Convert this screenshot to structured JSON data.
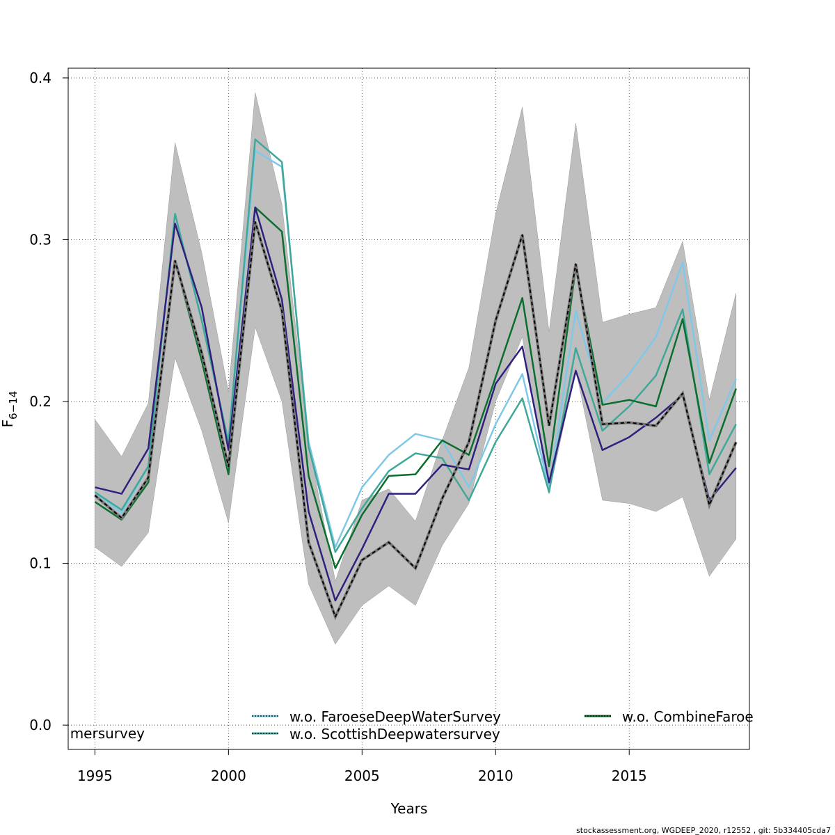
{
  "chart_data": {
    "type": "line",
    "title": "",
    "xlabel": "Years",
    "ylabel": "F",
    "ylabel_subscript": "6−14",
    "xlim": [
      1994,
      2019.5
    ],
    "ylim": [
      -0.015,
      0.406
    ],
    "grid": true,
    "x_ticks": [
      "1995",
      "2000",
      "2005",
      "2010",
      "2015"
    ],
    "y_ticks": [
      "0.0",
      "0.1",
      "0.2",
      "0.3",
      "0.4"
    ],
    "x": [
      1995,
      1996,
      1997,
      1998,
      1999,
      2000,
      2001,
      2002,
      2003,
      2004,
      2005,
      2006,
      2007,
      2008,
      2009,
      2010,
      2011,
      2012,
      2013,
      2014,
      2015,
      2016,
      2017,
      2018,
      2019
    ],
    "band": {
      "color": "#bebebe",
      "lower": [
        0.11,
        0.098,
        0.119,
        0.227,
        0.182,
        0.125,
        0.246,
        0.2,
        0.087,
        0.05,
        0.074,
        0.086,
        0.074,
        0.111,
        0.137,
        0.2,
        0.24,
        0.143,
        0.22,
        0.139,
        0.137,
        0.132,
        0.141,
        0.092,
        0.115
      ],
      "upper": [
        0.189,
        0.166,
        0.199,
        0.36,
        0.292,
        0.206,
        0.391,
        0.322,
        0.174,
        0.089,
        0.139,
        0.146,
        0.126,
        0.176,
        0.221,
        0.316,
        0.382,
        0.243,
        0.372,
        0.249,
        0.254,
        0.258,
        0.299,
        0.201,
        0.267
      ]
    },
    "series": [
      {
        "color": "#80c8e8",
        "dash": "",
        "values": [
          0.144,
          0.131,
          0.16,
          0.316,
          0.25,
          0.175,
          0.355,
          0.345,
          0.175,
          0.11,
          0.147,
          0.167,
          0.18,
          0.176,
          0.147,
          0.186,
          0.217,
          0.146,
          0.256,
          0.199,
          0.217,
          0.24,
          0.286,
          0.176,
          0.214
        ]
      },
      {
        "color": "#40a898",
        "dash": "",
        "values": [
          0.144,
          0.133,
          0.16,
          0.316,
          0.25,
          0.175,
          0.362,
          0.348,
          0.172,
          0.107,
          0.134,
          0.157,
          0.168,
          0.165,
          0.139,
          0.175,
          0.202,
          0.144,
          0.233,
          0.182,
          0.197,
          0.216,
          0.257,
          0.155,
          0.186
        ]
      },
      {
        "color": "#0c6e2e",
        "dash": "",
        "values": [
          0.138,
          0.127,
          0.15,
          0.287,
          0.225,
          0.155,
          0.32,
          0.305,
          0.154,
          0.097,
          0.13,
          0.154,
          0.155,
          0.176,
          0.167,
          0.215,
          0.264,
          0.16,
          0.283,
          0.198,
          0.201,
          0.197,
          0.251,
          0.162,
          0.208
        ]
      },
      {
        "color": "#30207e",
        "dash": "",
        "values": [
          0.147,
          0.143,
          0.171,
          0.31,
          0.258,
          0.17,
          0.32,
          0.263,
          0.132,
          0.077,
          0.109,
          0.143,
          0.143,
          0.161,
          0.158,
          0.211,
          0.234,
          0.15,
          0.219,
          0.17,
          0.178,
          0.19,
          0.204,
          0.139,
          0.159
        ]
      },
      {
        "color": "#000000",
        "dash": "5,4",
        "values": [
          0.142,
          0.128,
          0.153,
          0.287,
          0.23,
          0.16,
          0.311,
          0.256,
          0.113,
          0.067,
          0.102,
          0.113,
          0.097,
          0.14,
          0.175,
          0.25,
          0.303,
          0.185,
          0.285,
          0.186,
          0.187,
          0.185,
          0.205,
          0.136,
          0.175
        ]
      }
    ],
    "legend": [
      {
        "label": "w.o. FaroeseDeepWaterSurvey",
        "color": "#80c8e8"
      },
      {
        "label": "w.o. ScottishDeepwatersurvey",
        "color": "#40a898"
      },
      {
        "label": "w.o. CombineFaroe",
        "color": "#0c6e2e"
      },
      {
        "label": "mersurvey",
        "color": ""
      }
    ],
    "footer": "stockassessment.org, WGDEEP_2020, r12552 , git: 5b334405cda7"
  }
}
